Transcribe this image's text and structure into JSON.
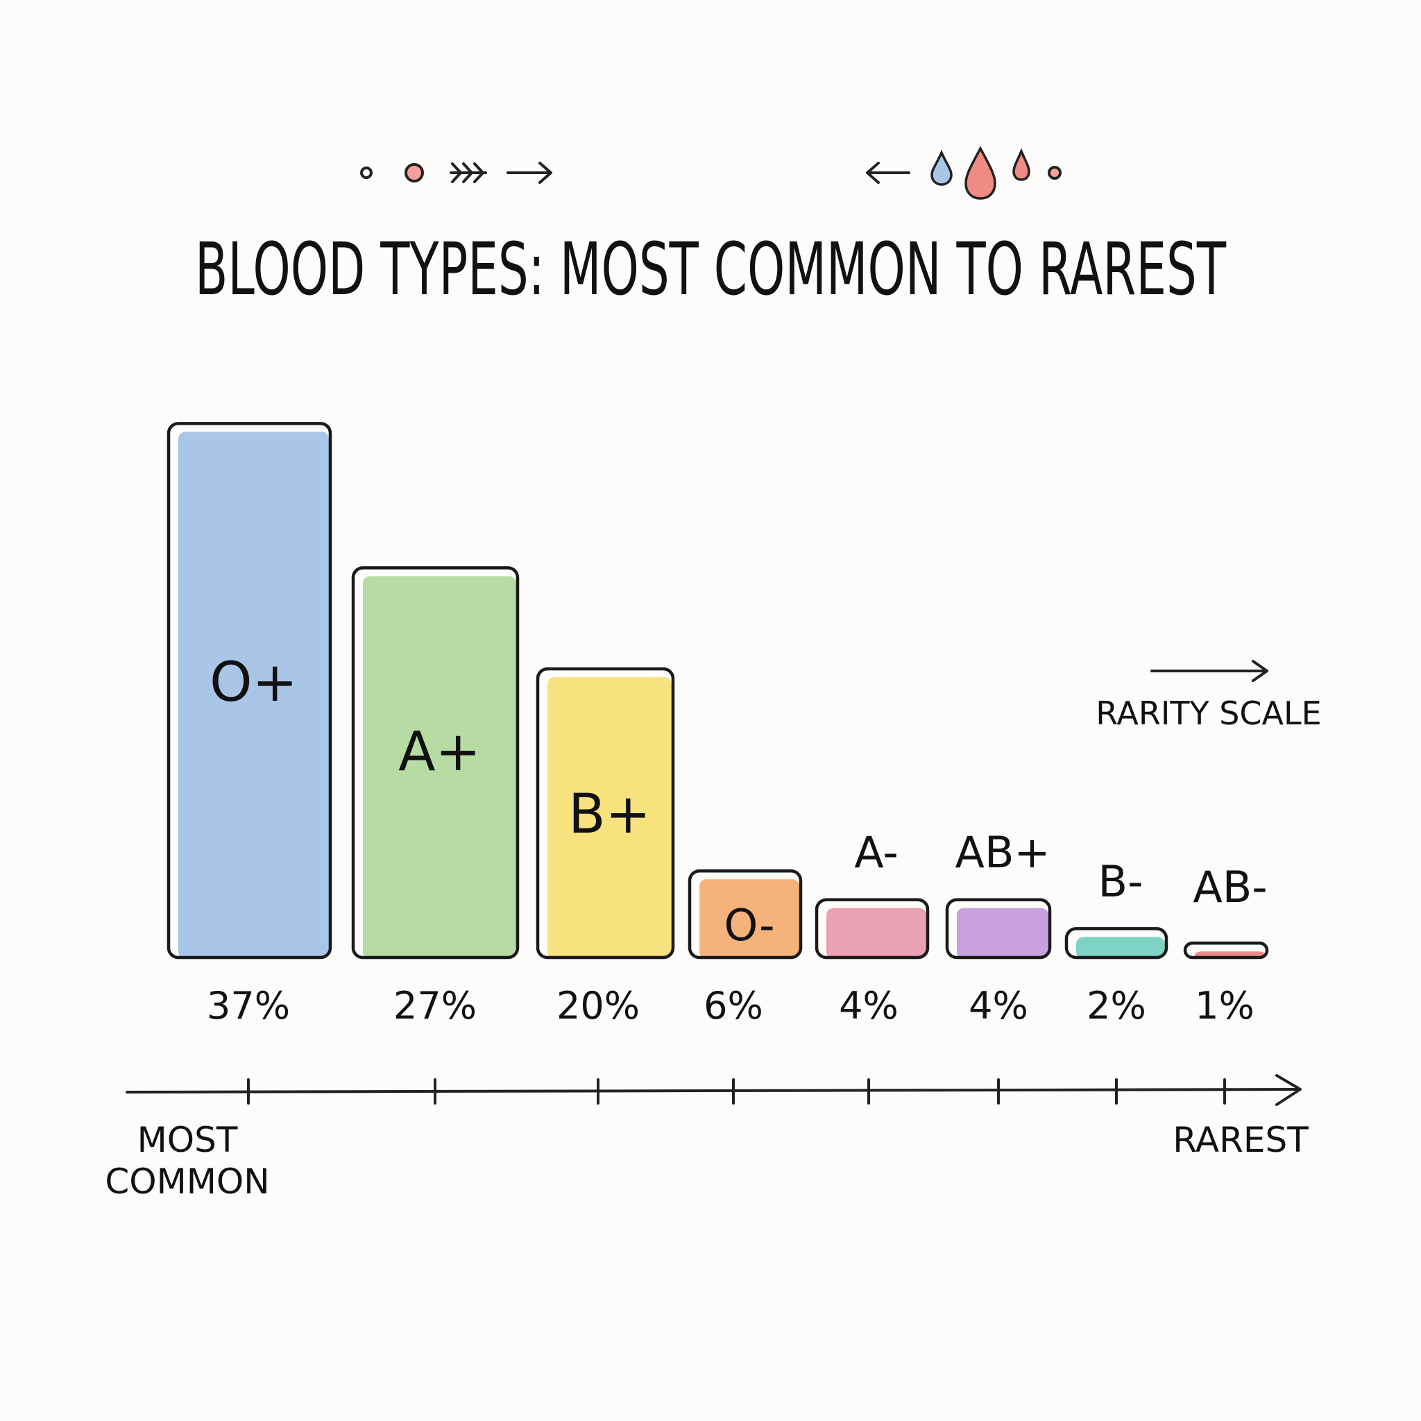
{
  "chart_data": {
    "type": "bar",
    "title": "BLOOD TYPES: MOST COMMON TO RAREST",
    "categories": [
      "O+",
      "A+",
      "B+",
      "O-",
      "A-",
      "AB+",
      "B-",
      "AB-"
    ],
    "values": [
      37,
      27,
      20,
      6,
      4,
      4,
      2,
      1
    ],
    "value_labels": [
      "37%",
      "27%",
      "20%",
      "6%",
      "4%",
      "4%",
      "2%",
      "1%"
    ],
    "bar_colors": [
      "#a9c6e8",
      "#b6dca3",
      "#f7e27e",
      "#f5b27a",
      "#eba1b4",
      "#c9a0de",
      "#7fd3c5",
      "#ef8a88"
    ],
    "unit": "%",
    "axis_start_label": [
      "MOST",
      "COMMON"
    ],
    "axis_end_label": "RAREST",
    "scale_label": "RARITY SCALE",
    "grid": false,
    "legend": "none"
  },
  "decorations": {
    "left_icons": [
      "dot-icon",
      "red-circle-icon",
      "fletching-icon",
      "right-arrow-icon"
    ],
    "right_icons": [
      "left-arrow-icon",
      "blue-drop-icon",
      "red-drop-icon",
      "small-red-drop-icon",
      "dot-icon"
    ],
    "accent_red": "#f08b84",
    "accent_blue": "#a9c6e8"
  }
}
